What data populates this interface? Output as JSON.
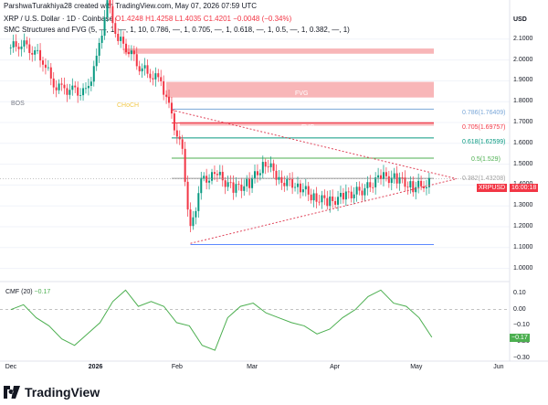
{
  "header": {
    "publisher_line": "ParshwaTurakhiya28 created with TradingView.com, May 07, 2026 07:59 UTC"
  },
  "legend": {
    "symbol": "XRP / U.S. Dollar · 1D · Coinbase",
    "open": "O1.4248",
    "high": "H1.4258",
    "low": "L1.4035",
    "close": "C1.4201",
    "change": "−0.0048 (−0.34%)",
    "indicator": "SMC Structures and FVG (5, —, 1, —, 1, 10, 0.786, —, 1, 0.705, —, 1, 0.618, —, 1, 0.5, —, 1, 0.382, —, 1)"
  },
  "annotations": {
    "bos": "BOS",
    "choch": "CHoCH",
    "fvg1": "FVG",
    "fvg2": "FVG",
    "fvg3": "FVG",
    "fib_0786": "0.786(1.76409)",
    "fib_0705": "0.705(1.69757)",
    "fib_0618": "0.618(1.62599)",
    "fib_05": "0.5(1.529)",
    "fib_0382": "0.382(1.43208)"
  },
  "price_badge": {
    "symbol": "XRPUSD",
    "countdown": "16:00:18"
  },
  "cmf": {
    "label": "CMF (20)",
    "value": "−0.17",
    "badge": "−0.17"
  },
  "price_axis": {
    "currency": "USD",
    "ticks": [
      "2.1000",
      "2.0000",
      "1.9000",
      "1.8000",
      "1.7000",
      "1.6000",
      "1.5000",
      "1.4000",
      "1.3000",
      "1.2000",
      "1.1000",
      "1.0000"
    ]
  },
  "cmf_axis": {
    "ticks": [
      "0.10",
      "0.00",
      "−0.10",
      "−0.20",
      "−0.30"
    ]
  },
  "time_axis": {
    "ticks": [
      "Dec",
      "2026",
      "Feb",
      "Mar",
      "Apr",
      "May",
      "Jun"
    ]
  },
  "footer": {
    "brand": "TradingView"
  },
  "colors": {
    "up": "#089981",
    "down": "#f23645",
    "fvg": "#f7a9ac",
    "cmf": "#4caf50",
    "trend": "#e0445a"
  },
  "chart_data": {
    "type": "candlestick",
    "title": "XRP / U.S. Dollar · 1D · Coinbase",
    "ylabel": "USD",
    "ylim": [
      0.95,
      2.2
    ],
    "x_ticks": [
      "Dec",
      "2026",
      "Feb",
      "Mar",
      "Apr",
      "May",
      "Jun"
    ],
    "close_path": [
      [
        "2025-12-01",
        2.06
      ],
      [
        "2025-12-05",
        2.08
      ],
      [
        "2025-12-09",
        2.05
      ],
      [
        "2025-12-13",
        2.0
      ],
      [
        "2025-12-17",
        1.88
      ],
      [
        "2025-12-21",
        1.86
      ],
      [
        "2025-12-25",
        1.85
      ],
      [
        "2025-12-29",
        1.84
      ],
      [
        "2026-01-02",
        2.0
      ],
      [
        "2026-01-06",
        2.28
      ],
      [
        "2026-01-10",
        2.1
      ],
      [
        "2026-01-14",
        2.05
      ],
      [
        "2026-01-18",
        1.97
      ],
      [
        "2026-01-22",
        1.93
      ],
      [
        "2026-01-26",
        1.9
      ],
      [
        "2026-01-30",
        1.73
      ],
      [
        "2026-02-03",
        1.55
      ],
      [
        "2026-02-06",
        1.18
      ],
      [
        "2026-02-10",
        1.42
      ],
      [
        "2026-02-16",
        1.45
      ],
      [
        "2026-02-22",
        1.38
      ],
      [
        "2026-02-28",
        1.41
      ],
      [
        "2026-03-06",
        1.51
      ],
      [
        "2026-03-12",
        1.42
      ],
      [
        "2026-03-18",
        1.4
      ],
      [
        "2026-03-24",
        1.34
      ],
      [
        "2026-03-30",
        1.32
      ],
      [
        "2026-04-05",
        1.35
      ],
      [
        "2026-04-12",
        1.38
      ],
      [
        "2026-04-18",
        1.44
      ],
      [
        "2026-04-24",
        1.43
      ],
      [
        "2026-04-30",
        1.39
      ],
      [
        "2026-05-04",
        1.4
      ],
      [
        "2026-05-07",
        1.42
      ]
    ],
    "levels": [
      {
        "name": "0.786",
        "value": 1.76409
      },
      {
        "name": "0.705",
        "value": 1.69757
      },
      {
        "name": "0.618",
        "value": 1.62599
      },
      {
        "name": "0.5",
        "value": 1.529
      },
      {
        "name": "0.382",
        "value": 1.43208
      }
    ],
    "fvg_zones": [
      [
        2.03,
        2.055
      ],
      [
        1.82,
        1.895
      ],
      [
        1.685,
        1.705
      ]
    ],
    "cmf_series": [
      0.0,
      0.03,
      -0.05,
      -0.1,
      -0.18,
      -0.22,
      -0.15,
      -0.08,
      0.05,
      0.12,
      0.02,
      0.05,
      0.02,
      -0.08,
      -0.1,
      -0.22,
      -0.25,
      -0.05,
      0.02,
      0.04,
      -0.02,
      -0.05,
      -0.08,
      -0.1,
      -0.15,
      -0.12,
      -0.05,
      0.0,
      0.08,
      0.12,
      0.04,
      0.02,
      -0.05,
      -0.17
    ],
    "cmf_ylim": [
      -0.3,
      0.15
    ]
  }
}
